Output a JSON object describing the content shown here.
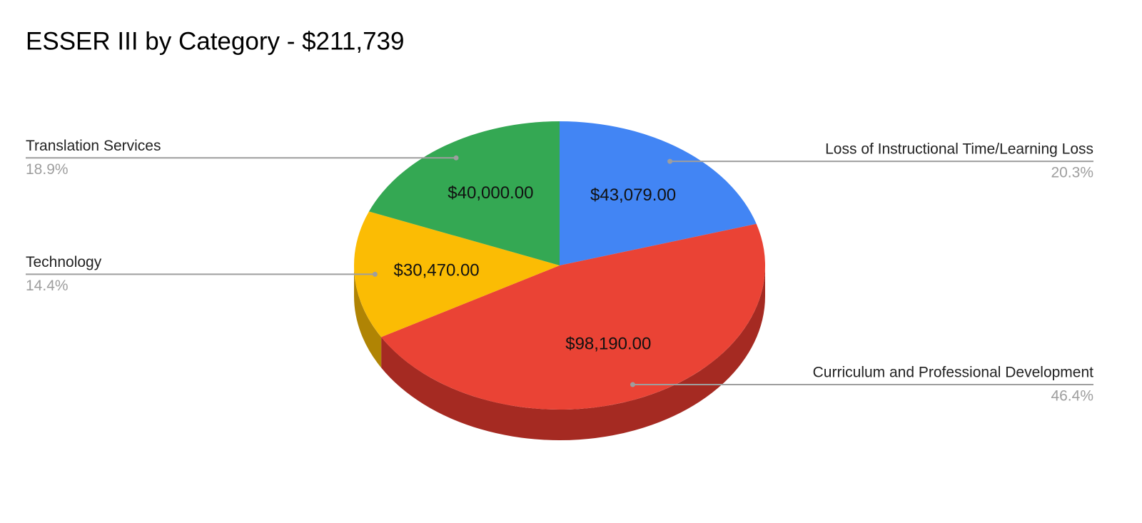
{
  "chart_data": {
    "type": "pie",
    "title": "ESSER III by Category - $211,739",
    "categories": [
      "Loss of Instructional Time/Learning Loss",
      "Curriculum and Professional Development",
      "Technology",
      "Translation Services"
    ],
    "values": [
      43079,
      98190,
      30470,
      40000
    ],
    "value_labels": [
      "$43,079.00",
      "$98,190.00",
      "$30,470.00",
      "$40,000.00"
    ],
    "percent_labels": [
      "20.3%",
      "46.4%",
      "14.4%",
      "18.9%"
    ],
    "colors": [
      "#4285f4",
      "#ea4335",
      "#fbbc04",
      "#34a853"
    ],
    "side_colors": [
      "#2a5bb0",
      "#a52a22",
      "#b08404",
      "#23733a"
    ]
  }
}
